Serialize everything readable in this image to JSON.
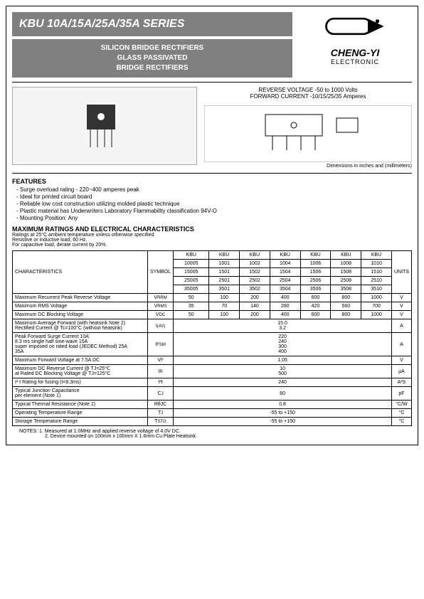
{
  "header": {
    "title": "KBU 10A/15A/25A/35A SERIES",
    "subtitle1": "SILICON BRIDGE RECTIFIERS",
    "subtitle2": "GLASS PASSIVATED",
    "subtitle3": "BRIDGE  RECTIFIERS",
    "brand": "CHENG-YI",
    "brand_sub": "ELECTRONIC"
  },
  "specs": {
    "reverse": "REVERSE VOLTAGE -50 to 1000 Volts",
    "forward": "FORWARD CURRENT -10/15/25/35  Amperes",
    "dim_note": "Dimensions in inches and (millimeters)"
  },
  "features": {
    "title": "FEATURES",
    "items": [
      "Surge overload rating - 220~400 amperes peak",
      "Ideal for printed circuit board",
      "Reliable low cost construction utilizing molded plastic technique",
      "Plastic material has Underwriters Laboratory Flammability classification 94V-O",
      "Mounting Position: Any"
    ]
  },
  "ratings": {
    "title": "MAXIMUM RATINGS  AND ELECTRICAL  CHARACTERISTICS",
    "sub1": "Ratings at 25°C ambient temperature unless otherwise specified.",
    "sub2": "Resistive or inductive load, 60 Hz.",
    "sub3": "For capacitive load, derate current by 20%.",
    "char_label": "CHARACTERISTICS",
    "sym_label": "SYMBOL",
    "unit_label": "UNITS",
    "kbu": "KBU",
    "model_rows": [
      [
        "10005",
        "1001",
        "1002",
        "1004",
        "1006",
        "1008",
        "1010"
      ],
      [
        "15005",
        "1501",
        "1502",
        "1504",
        "1506",
        "1508",
        "1510"
      ],
      [
        "25005",
        "2501",
        "2502",
        "2504",
        "2506",
        "2508",
        "2510"
      ],
      [
        "35005",
        "3501",
        "3502",
        "3504",
        "3506",
        "3508",
        "3510"
      ]
    ],
    "rows": [
      {
        "char": "Maximum Recurrent Peak Reverse Voltage",
        "sym": "V",
        "sub": "RRM",
        "vals": [
          "50",
          "100",
          "200",
          "400",
          "600",
          "800",
          "1000"
        ],
        "unit": "V"
      },
      {
        "char": "Maximum RMS Voltage",
        "sym": "V",
        "sub": "RMS",
        "vals": [
          "35",
          "70",
          "140",
          "280",
          "420",
          "560",
          "700"
        ],
        "unit": "V"
      },
      {
        "char": "Maximum DC Blocking Voltage",
        "sym": "V",
        "sub": "DC",
        "vals": [
          "50",
          "100",
          "200",
          "400",
          "600",
          "800",
          "1000"
        ],
        "unit": "V"
      }
    ],
    "span_rows": [
      {
        "char": "Maximum Average Forward (with heatsink Note 2) Rectified Current @ Tc=100°C (without heatsink)",
        "sym": "I",
        "sub": "(AV)",
        "val": "15.0\n3.2",
        "unit": "A"
      },
      {
        "char": "Peak Forward Surge Current                10A\n8.3 ms single half sine-wave              15A\nsuper imposed on rated load (JEDEC Method) 25A\n                                          35A",
        "sym": "I",
        "sub": "FSM",
        "val": "220\n240\n300\n400",
        "unit": "A"
      },
      {
        "char": "Maximum Forward Voltage at 7.5A DC",
        "sym": "V",
        "sub": "F",
        "val": "1.05",
        "unit": "V"
      },
      {
        "char": "Maximum DC Reverse Current      @ TJ=25°C\nat Rated DC Blocking Voltage    @ TJ=125°C",
        "sym": "I",
        "sub": "R",
        "val": "10\n500",
        "unit": "μA"
      },
      {
        "char": "I² t Rating for fusing (t<8.3ms)",
        "sym": "I²t",
        "sub": "",
        "val": "240",
        "unit": "A²S"
      },
      {
        "char": "Typical Junction Capacitance\nper element (Note 1)",
        "sym": "C",
        "sub": "J",
        "val": "60",
        "unit": "pF"
      },
      {
        "char": "Typical Thermal Resistance (Note 2)",
        "sym": "RθJC",
        "sub": "",
        "val": "0.8",
        "unit": "°C/W"
      },
      {
        "char": "Operating Temperature Range",
        "sym": "T",
        "sub": "J",
        "val": "-55 to +150",
        "unit": "°C"
      },
      {
        "char": "Storage Temperature Range",
        "sym": "T",
        "sub": "STG",
        "val": "-55 to +150",
        "unit": "°C"
      }
    ]
  },
  "notes": {
    "n1": "NOTES: 1. Measured at 1.0MHz and applied reverse voltage of 4.0V DC.",
    "n2": "2. Device mounted on 100mm x 100mm X 1.6mm Cu Plate Heatsink."
  }
}
